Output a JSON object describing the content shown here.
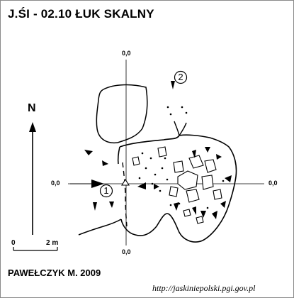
{
  "title": "J.ŚI - 02.10  ŁUK SKALNY",
  "north_label": "N",
  "coordinate_labels": {
    "top": "0,0",
    "bottom": "0,0",
    "left": "0,0",
    "right": "0,0"
  },
  "scale_bar": {
    "start": "0",
    "end": "2 m"
  },
  "entrances": [
    {
      "number": "1"
    },
    {
      "number": "2"
    }
  ],
  "author": "PAWEŁCZYK M. 2009",
  "url": "http://jaskiniepolski.pgi.gov.pl",
  "colors": {
    "ink": "#000000",
    "paper": "#ffffff",
    "frame": "#8a8a8a"
  }
}
